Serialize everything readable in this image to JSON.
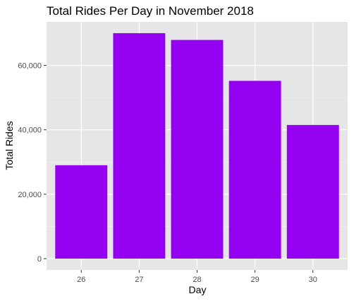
{
  "chart_data": {
    "type": "bar",
    "title": "Total Rides Per Day in November 2018",
    "xlabel": "Day",
    "ylabel": "Total Rides",
    "categories": [
      "26",
      "27",
      "28",
      "29",
      "30"
    ],
    "values": [
      29000,
      70000,
      67900,
      55200,
      41500
    ],
    "ylim": [
      -3500,
      73500
    ],
    "yticks": [
      0,
      20000,
      40000,
      60000
    ],
    "ytick_labels": [
      "0",
      "20,000",
      "40,000",
      "60,000"
    ],
    "bar_color": "#9400f0",
    "panel_background": "#e6e6e6",
    "grid": true,
    "legend": "none"
  }
}
